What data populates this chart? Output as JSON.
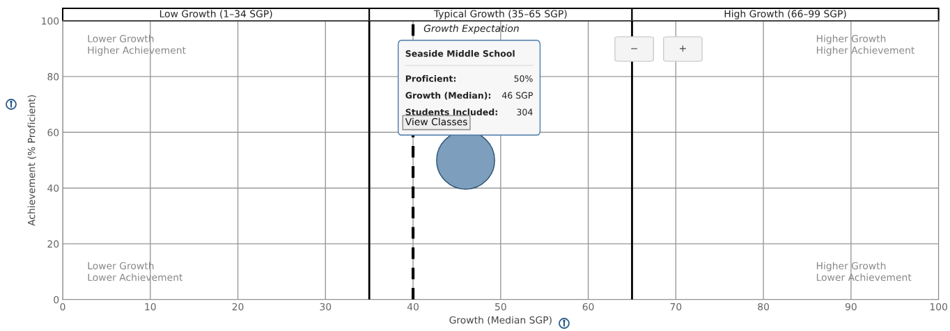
{
  "chart_data": {
    "type": "scatter",
    "x": [
      46
    ],
    "series": [
      {
        "color": "#7d9fbd",
        "values": [
          50
        ]
      }
    ],
    "marker": "circle",
    "xlabel": "Growth (Median SGP)",
    "ylabel": "Achievement (% Proficient)",
    "xlim": [
      0,
      100
    ],
    "xticks": [
      0,
      10,
      20,
      30,
      40,
      50,
      60,
      70,
      80,
      90,
      100
    ],
    "ylim": [
      0,
      100
    ],
    "yticks": [
      0,
      20,
      40,
      60,
      80,
      100
    ],
    "grid": true,
    "ref_lines": [
      {
        "axis": "x",
        "value": 35,
        "label": null,
        "color": "#000000",
        "line_style": "solid"
      },
      {
        "axis": "x",
        "value": 65,
        "label": null,
        "color": "#000000",
        "line_style": "solid"
      },
      {
        "axis": "x",
        "value": 40,
        "label": "Growth Expectation",
        "color": "#000000",
        "line_style": "dashed"
      }
    ],
    "annotations": [
      "Lower Growth\nHigher Achievement",
      "Higher Growth\nHigher Achievement",
      "Lower Growth\nLower Achievement",
      "Higher Growth\nLower Achievement",
      "Seaside Middle School",
      "Proficient:",
      "50%",
      "Growth (Median):",
      "46 SGP",
      "Students Included:",
      "304",
      "View Classes",
      "−",
      "+",
      "Low Growth (1–34 SGP)",
      "Typical Growth (35–65 SGP)",
      "High Growth (66–99 SGP)"
    ]
  }
}
